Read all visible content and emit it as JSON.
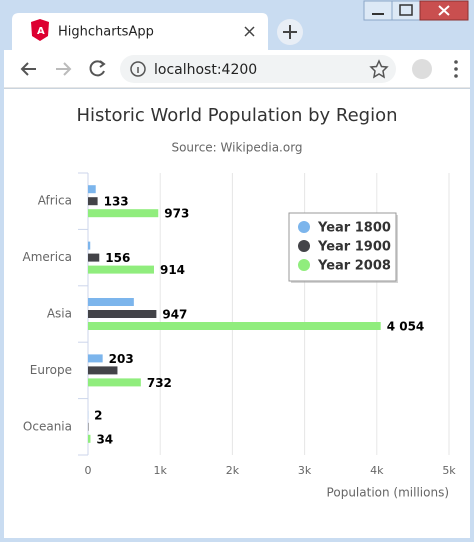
{
  "browser": {
    "tab_title": "HighchartsApp",
    "url": "localhost:4200"
  },
  "chart_data": {
    "type": "bar",
    "orientation": "horizontal",
    "title": "Historic World Population by Region",
    "subtitle": "Source: Wikipedia.org",
    "x_label": "Population (millions)",
    "categories": [
      "Africa",
      "America",
      "Asia",
      "Europe",
      "Oceania"
    ],
    "series": [
      {
        "name": "Year 1800",
        "color": "#7cb5ec",
        "values": [
          107,
          31,
          635,
          203,
          2
        ],
        "value_labels": [
          null,
          null,
          null,
          "203",
          "2"
        ]
      },
      {
        "name": "Year 1900",
        "color": "#434348",
        "values": [
          133,
          156,
          947,
          408,
          6
        ],
        "value_labels": [
          "133",
          "156",
          "947",
          null,
          null
        ]
      },
      {
        "name": "Year 2008",
        "color": "#90ed7d",
        "values": [
          973,
          914,
          4054,
          732,
          34
        ],
        "value_labels": [
          "973",
          "914",
          "4 054",
          "732",
          "34"
        ]
      }
    ],
    "xlim": [
      0,
      5000
    ],
    "xticks": [
      0,
      {
        "value": 1000,
        "label": "1k"
      },
      {
        "value": 2000,
        "label": "2k"
      },
      {
        "value": 3000,
        "label": "3k"
      },
      {
        "value": 4000,
        "label": "4k"
      },
      {
        "value": 5000,
        "label": "5k"
      }
    ],
    "grid": true,
    "legend": "top-right"
  }
}
